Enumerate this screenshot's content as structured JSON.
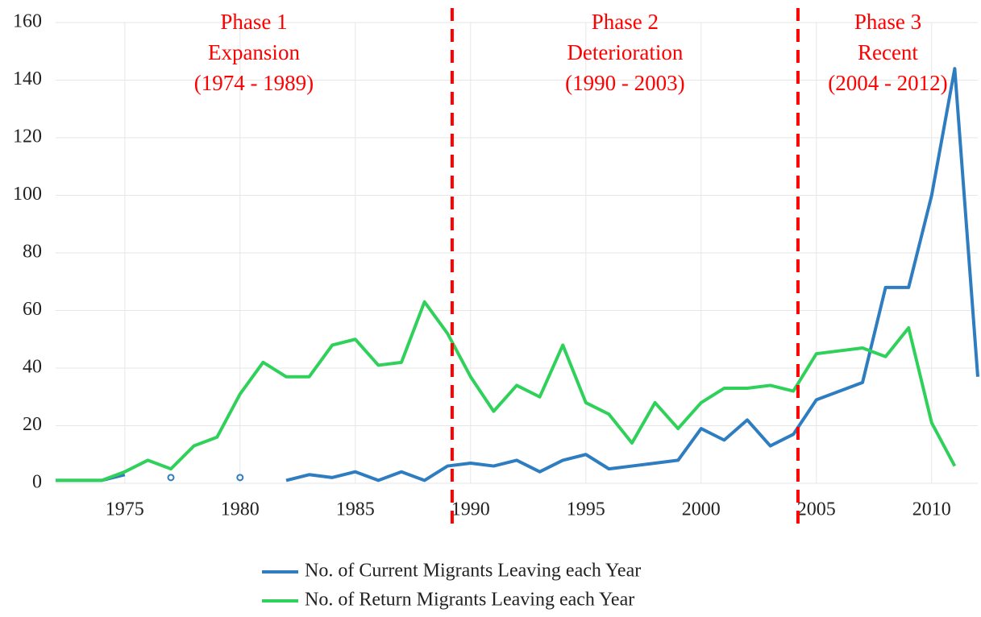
{
  "chart_data": {
    "type": "line",
    "x": [
      1972,
      1973,
      1974,
      1975,
      1976,
      1977,
      1978,
      1979,
      1980,
      1981,
      1982,
      1983,
      1984,
      1985,
      1986,
      1987,
      1988,
      1989,
      1990,
      1991,
      1992,
      1993,
      1994,
      1995,
      1996,
      1997,
      1998,
      1999,
      2000,
      2001,
      2002,
      2003,
      2004,
      2005,
      2006,
      2007,
      2008,
      2009,
      2010,
      2011,
      2012
    ],
    "series": [
      {
        "name": "No. of Current Migrants Leaving each Year",
        "color": "#2e7dc0",
        "values": [
          1,
          1,
          1,
          3,
          null,
          2,
          null,
          null,
          2,
          null,
          1,
          3,
          2,
          4,
          1,
          4,
          1,
          6,
          7,
          6,
          8,
          4,
          8,
          10,
          5,
          6,
          7,
          8,
          19,
          15,
          22,
          13,
          17,
          29,
          32,
          35,
          68,
          68,
          100,
          144,
          37
        ]
      },
      {
        "name": "No. of Return Migrants Leaving each Year",
        "color": "#2fd15a",
        "values": [
          1,
          1,
          1,
          4,
          8,
          5,
          13,
          16,
          31,
          42,
          37,
          37,
          48,
          50,
          41,
          42,
          63,
          52,
          37,
          25,
          34,
          30,
          48,
          28,
          24,
          14,
          28,
          19,
          28,
          33,
          33,
          34,
          32,
          45,
          46,
          47,
          44,
          54,
          21,
          6,
          null
        ]
      }
    ],
    "xlim": [
      1972,
      2012
    ],
    "xticks": [
      1975,
      1980,
      1985,
      1990,
      1995,
      2000,
      2005,
      2010
    ],
    "ylim": [
      0,
      160
    ],
    "yticks": [
      0,
      20,
      40,
      60,
      80,
      100,
      120,
      140,
      160
    ],
    "grid": true,
    "phase_lines": [
      1989.2,
      2004.2
    ],
    "phase_color": "#ff0000",
    "annotations": [
      {
        "lines": [
          "Phase 1",
          "Expansion",
          "(1974 - 1989)"
        ]
      },
      {
        "lines": [
          "Phase 2",
          "Deterioration",
          "(1990 - 2003)"
        ]
      },
      {
        "lines": [
          "Phase 3",
          "Recent",
          "(2004 - 2012)"
        ]
      }
    ],
    "legend": "bottom"
  }
}
